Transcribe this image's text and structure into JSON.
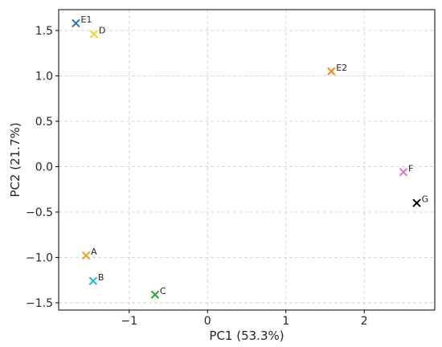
{
  "chart_data": {
    "type": "scatter",
    "title": "",
    "xlabel": "PC1 (53.3%)",
    "ylabel": "PC2 (21.7%)",
    "xlim": [
      -1.9,
      2.9
    ],
    "ylim": [
      -1.58,
      1.73
    ],
    "xticks": [
      -1,
      0,
      1,
      2
    ],
    "xtick_labels": [
      "−1",
      "0",
      "1",
      "2"
    ],
    "yticks": [
      -1.5,
      -1.0,
      -0.5,
      0.0,
      0.5,
      1.0,
      1.5
    ],
    "ytick_labels": [
      "−1.5",
      "−1.0",
      "−0.5",
      "0.0",
      "0.5",
      "1.0",
      "1.5"
    ],
    "grid": true,
    "marker": "x",
    "points": [
      {
        "label": "E1",
        "x": -1.68,
        "y": 1.58,
        "color": "#1f77b4"
      },
      {
        "label": "D",
        "x": -1.45,
        "y": 1.46,
        "color": "#e6d930"
      },
      {
        "label": "E2",
        "x": 1.58,
        "y": 1.05,
        "color": "#ff7f0e"
      },
      {
        "label": "F",
        "x": 2.5,
        "y": -0.06,
        "color": "#e377c2"
      },
      {
        "label": "G",
        "x": 2.67,
        "y": -0.4,
        "color": "#000000"
      },
      {
        "label": "A",
        "x": -1.55,
        "y": -0.98,
        "color": "#f0a020"
      },
      {
        "label": "B",
        "x": -1.46,
        "y": -1.26,
        "color": "#17becf"
      },
      {
        "label": "C",
        "x": -0.67,
        "y": -1.41,
        "color": "#2ca02c"
      }
    ]
  }
}
